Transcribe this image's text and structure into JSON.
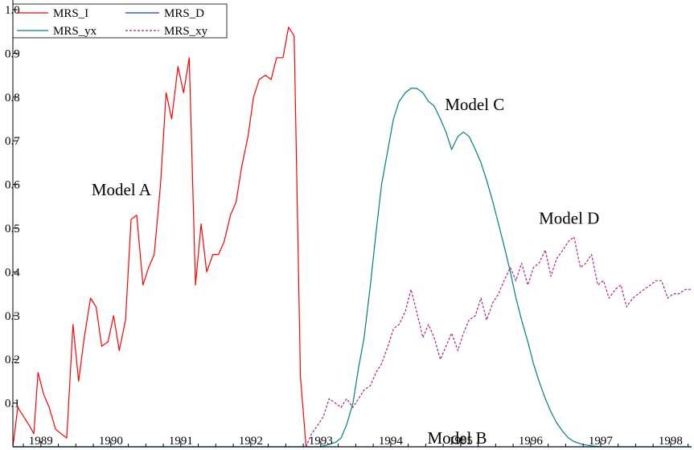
{
  "chart_data": {
    "type": "line",
    "title": "",
    "xlabel": "",
    "ylabel": "",
    "xlim": [
      1988.6,
      1998.3
    ],
    "ylim": [
      0.0,
      1.0
    ],
    "grid": false,
    "legend_position": "top-left",
    "x_ticks": [
      1989,
      1990,
      1991,
      1992,
      1993,
      1994,
      1995,
      1996,
      1997,
      1998
    ],
    "x_tick_labels": [
      "1989",
      "1990",
      "1991",
      "1992",
      "1993",
      "1994",
      "1995",
      "1996",
      "1997",
      "1998"
    ],
    "y_ticks": [
      0.1,
      0.2,
      0.3,
      0.4,
      0.5,
      0.6,
      0.7,
      0.8,
      0.9,
      1.0
    ],
    "y_tick_labels": [
      "0.1",
      "0.2",
      "0.3",
      "0.4",
      "0.5",
      "0.6",
      "0.7",
      "0.8",
      "0.9",
      "1.0"
    ],
    "legend": [
      {
        "name": "MRS_I",
        "color": "#ff0000",
        "dash": "solid"
      },
      {
        "name": "MRS_D",
        "color": "#1a3fb0",
        "dash": "solid"
      },
      {
        "name": "MRS_yx",
        "color": "#008080",
        "dash": "solid"
      },
      {
        "name": "MRS_xy",
        "color": "#b0208a",
        "dash": "dashed"
      }
    ],
    "annotations": [
      {
        "text": "Model A",
        "x": 1990.15,
        "y": 0.575
      },
      {
        "text": "Model B",
        "x": 1994.95,
        "y": 0.007
      },
      {
        "text": "Model C",
        "x": 1995.2,
        "y": 0.77
      },
      {
        "text": "Model D",
        "x": 1996.55,
        "y": 0.51
      }
    ],
    "series": [
      {
        "name": "MRS_I",
        "color": "#ff0000",
        "dash": "solid",
        "points": [
          [
            1988.6,
            0.0
          ],
          [
            1988.67,
            0.09
          ],
          [
            1988.75,
            0.07
          ],
          [
            1988.83,
            0.05
          ],
          [
            1988.9,
            0.03
          ],
          [
            1988.96,
            0.17
          ],
          [
            1989.04,
            0.12
          ],
          [
            1989.12,
            0.09
          ],
          [
            1989.21,
            0.04
          ],
          [
            1989.29,
            0.03
          ],
          [
            1989.37,
            0.02
          ],
          [
            1989.46,
            0.28
          ],
          [
            1989.54,
            0.15
          ],
          [
            1989.62,
            0.25
          ],
          [
            1989.71,
            0.34
          ],
          [
            1989.79,
            0.32
          ],
          [
            1989.87,
            0.23
          ],
          [
            1989.96,
            0.24
          ],
          [
            1990.04,
            0.3
          ],
          [
            1990.12,
            0.22
          ],
          [
            1990.21,
            0.29
          ],
          [
            1990.29,
            0.52
          ],
          [
            1990.37,
            0.53
          ],
          [
            1990.46,
            0.37
          ],
          [
            1990.54,
            0.41
          ],
          [
            1990.62,
            0.44
          ],
          [
            1990.71,
            0.6
          ],
          [
            1990.79,
            0.81
          ],
          [
            1990.87,
            0.75
          ],
          [
            1990.96,
            0.87
          ],
          [
            1991.04,
            0.81
          ],
          [
            1991.12,
            0.89
          ],
          [
            1991.21,
            0.37
          ],
          [
            1991.29,
            0.51
          ],
          [
            1991.37,
            0.4
          ],
          [
            1991.46,
            0.44
          ],
          [
            1991.54,
            0.44
          ],
          [
            1991.62,
            0.47
          ],
          [
            1991.71,
            0.53
          ],
          [
            1991.79,
            0.56
          ],
          [
            1991.87,
            0.64
          ],
          [
            1991.96,
            0.71
          ],
          [
            1992.04,
            0.8
          ],
          [
            1992.12,
            0.84
          ],
          [
            1992.21,
            0.85
          ],
          [
            1992.29,
            0.84
          ],
          [
            1992.37,
            0.89
          ],
          [
            1992.46,
            0.89
          ],
          [
            1992.54,
            0.96
          ],
          [
            1992.62,
            0.94
          ],
          [
            1992.71,
            0.16
          ],
          [
            1992.79,
            0.0
          ]
        ]
      },
      {
        "name": "MRS_D",
        "color": "#1a3fb0",
        "dash": "solid",
        "points": [
          [
            1988.6,
            0.0
          ],
          [
            1998.3,
            0.0
          ]
        ]
      },
      {
        "name": "MRS_yx",
        "color": "#008080",
        "dash": "solid",
        "points": [
          [
            1988.6,
            0.0
          ],
          [
            1993.0,
            0.0
          ],
          [
            1993.21,
            0.01
          ],
          [
            1993.29,
            0.02
          ],
          [
            1993.37,
            0.05
          ],
          [
            1993.46,
            0.1
          ],
          [
            1993.54,
            0.18
          ],
          [
            1993.62,
            0.25
          ],
          [
            1993.71,
            0.37
          ],
          [
            1993.79,
            0.49
          ],
          [
            1993.87,
            0.6
          ],
          [
            1993.96,
            0.68
          ],
          [
            1994.04,
            0.75
          ],
          [
            1994.12,
            0.79
          ],
          [
            1994.21,
            0.81
          ],
          [
            1994.29,
            0.82
          ],
          [
            1994.37,
            0.82
          ],
          [
            1994.46,
            0.81
          ],
          [
            1994.54,
            0.79
          ],
          [
            1994.62,
            0.78
          ],
          [
            1994.71,
            0.75
          ],
          [
            1994.79,
            0.72
          ],
          [
            1994.87,
            0.68
          ],
          [
            1994.96,
            0.71
          ],
          [
            1995.04,
            0.72
          ],
          [
            1995.12,
            0.71
          ],
          [
            1995.21,
            0.68
          ],
          [
            1995.29,
            0.65
          ],
          [
            1995.37,
            0.61
          ],
          [
            1995.46,
            0.56
          ],
          [
            1995.54,
            0.51
          ],
          [
            1995.62,
            0.46
          ],
          [
            1995.71,
            0.4
          ],
          [
            1995.79,
            0.34
          ],
          [
            1995.87,
            0.29
          ],
          [
            1995.96,
            0.24
          ],
          [
            1996.04,
            0.19
          ],
          [
            1996.12,
            0.15
          ],
          [
            1996.21,
            0.11
          ],
          [
            1996.29,
            0.08
          ],
          [
            1996.37,
            0.055
          ],
          [
            1996.46,
            0.035
          ],
          [
            1996.54,
            0.02
          ],
          [
            1996.62,
            0.012
          ],
          [
            1996.71,
            0.007
          ],
          [
            1996.79,
            0.004
          ],
          [
            1996.87,
            0.002
          ],
          [
            1997.0,
            0.0
          ],
          [
            1998.3,
            0.0
          ]
        ]
      },
      {
        "name": "MRS_xy",
        "color": "#b0208a",
        "dash": "dashed",
        "points": [
          [
            1992.79,
            0.0
          ],
          [
            1992.87,
            0.03
          ],
          [
            1992.96,
            0.05
          ],
          [
            1993.04,
            0.07
          ],
          [
            1993.12,
            0.11
          ],
          [
            1993.21,
            0.1
          ],
          [
            1993.29,
            0.09
          ],
          [
            1993.37,
            0.11
          ],
          [
            1993.46,
            0.09
          ],
          [
            1993.54,
            0.11
          ],
          [
            1993.62,
            0.13
          ],
          [
            1993.71,
            0.14
          ],
          [
            1993.79,
            0.17
          ],
          [
            1993.87,
            0.19
          ],
          [
            1993.96,
            0.23
          ],
          [
            1994.04,
            0.27
          ],
          [
            1994.12,
            0.28
          ],
          [
            1994.21,
            0.31
          ],
          [
            1994.29,
            0.36
          ],
          [
            1994.37,
            0.31
          ],
          [
            1994.46,
            0.25
          ],
          [
            1994.54,
            0.28
          ],
          [
            1994.62,
            0.25
          ],
          [
            1994.71,
            0.2
          ],
          [
            1994.79,
            0.23
          ],
          [
            1994.87,
            0.26
          ],
          [
            1994.96,
            0.22
          ],
          [
            1995.04,
            0.26
          ],
          [
            1995.12,
            0.29
          ],
          [
            1995.21,
            0.3
          ],
          [
            1995.29,
            0.34
          ],
          [
            1995.37,
            0.29
          ],
          [
            1995.46,
            0.33
          ],
          [
            1995.54,
            0.35
          ],
          [
            1995.62,
            0.38
          ],
          [
            1995.71,
            0.41
          ],
          [
            1995.79,
            0.38
          ],
          [
            1995.87,
            0.42
          ],
          [
            1995.96,
            0.37
          ],
          [
            1996.04,
            0.41
          ],
          [
            1996.12,
            0.42
          ],
          [
            1996.21,
            0.45
          ],
          [
            1996.29,
            0.39
          ],
          [
            1996.37,
            0.43
          ],
          [
            1996.46,
            0.45
          ],
          [
            1996.54,
            0.47
          ],
          [
            1996.62,
            0.48
          ],
          [
            1996.71,
            0.41
          ],
          [
            1996.79,
            0.42
          ],
          [
            1996.87,
            0.44
          ],
          [
            1996.96,
            0.37
          ],
          [
            1997.04,
            0.38
          ],
          [
            1997.12,
            0.34
          ],
          [
            1997.21,
            0.36
          ],
          [
            1997.29,
            0.37
          ],
          [
            1997.37,
            0.32
          ],
          [
            1997.46,
            0.34
          ],
          [
            1997.54,
            0.35
          ],
          [
            1997.62,
            0.36
          ],
          [
            1997.71,
            0.37
          ],
          [
            1997.79,
            0.38
          ],
          [
            1997.87,
            0.38
          ],
          [
            1997.96,
            0.34
          ],
          [
            1998.04,
            0.35
          ],
          [
            1998.12,
            0.35
          ],
          [
            1998.21,
            0.36
          ],
          [
            1998.3,
            0.36
          ]
        ]
      }
    ]
  }
}
